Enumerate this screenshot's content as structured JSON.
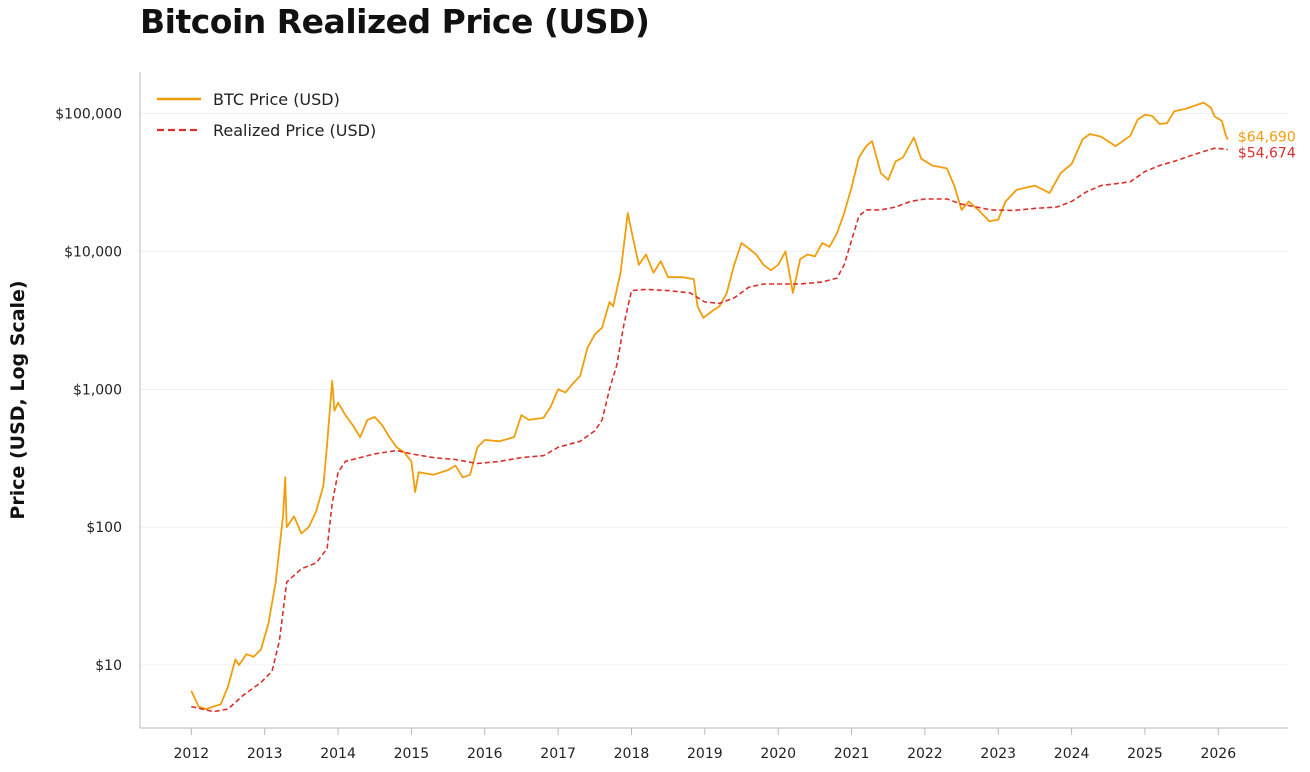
{
  "title": "Bitcoin Realized Price (USD)",
  "chart_data": {
    "type": "line",
    "title": "Bitcoin Realized Price (USD)",
    "xlabel": "",
    "ylabel": "Price (USD, Log Scale)",
    "yscale": "log",
    "ylim": [
      3.5,
      200000
    ],
    "xlim": [
      2011.3,
      2026.95
    ],
    "grid": "horizontal",
    "legend": "top-left",
    "x_ticks": [
      2012,
      2013,
      2014,
      2015,
      2016,
      2017,
      2018,
      2019,
      2020,
      2021,
      2022,
      2023,
      2024,
      2025,
      2026
    ],
    "x_tick_labels": [
      "2012",
      "2013",
      "2014",
      "2015",
      "2016",
      "2017",
      "2018",
      "2019",
      "2020",
      "2021",
      "2022",
      "2023",
      "2024",
      "2025",
      "2026"
    ],
    "y_ticks": [
      10,
      100,
      1000,
      10000,
      100000
    ],
    "y_tick_labels": [
      "$10",
      "$100",
      "$1,000",
      "$10,000",
      "$100,000"
    ],
    "series": [
      {
        "name": "BTC Price (USD)",
        "color": "#f29d0c",
        "style": "solid",
        "end_label": "$64,690",
        "points": [
          [
            2012.0,
            6.5
          ],
          [
            2012.1,
            5.0
          ],
          [
            2012.2,
            4.8
          ],
          [
            2012.3,
            5.0
          ],
          [
            2012.4,
            5.2
          ],
          [
            2012.5,
            7.0
          ],
          [
            2012.6,
            11.0
          ],
          [
            2012.65,
            10.0
          ],
          [
            2012.75,
            12.0
          ],
          [
            2012.85,
            11.5
          ],
          [
            2012.95,
            13.0
          ],
          [
            2013.05,
            20.0
          ],
          [
            2013.15,
            40.0
          ],
          [
            2013.25,
            120.0
          ],
          [
            2013.28,
            230.0
          ],
          [
            2013.3,
            100.0
          ],
          [
            2013.4,
            120.0
          ],
          [
            2013.5,
            90.0
          ],
          [
            2013.6,
            100.0
          ],
          [
            2013.7,
            130.0
          ],
          [
            2013.8,
            200.0
          ],
          [
            2013.85,
            400.0
          ],
          [
            2013.92,
            1150.0
          ],
          [
            2013.95,
            700.0
          ],
          [
            2014.0,
            800.0
          ],
          [
            2014.1,
            650.0
          ],
          [
            2014.2,
            550.0
          ],
          [
            2014.3,
            450.0
          ],
          [
            2014.4,
            600.0
          ],
          [
            2014.5,
            630.0
          ],
          [
            2014.6,
            550.0
          ],
          [
            2014.7,
            450.0
          ],
          [
            2014.8,
            380.0
          ],
          [
            2014.9,
            350.0
          ],
          [
            2015.0,
            300.0
          ],
          [
            2015.05,
            180.0
          ],
          [
            2015.1,
            250.0
          ],
          [
            2015.3,
            240.0
          ],
          [
            2015.5,
            260.0
          ],
          [
            2015.6,
            280.0
          ],
          [
            2015.7,
            230.0
          ],
          [
            2015.8,
            240.0
          ],
          [
            2015.9,
            380.0
          ],
          [
            2016.0,
            430.0
          ],
          [
            2016.2,
            420.0
          ],
          [
            2016.4,
            450.0
          ],
          [
            2016.5,
            650.0
          ],
          [
            2016.6,
            600.0
          ],
          [
            2016.8,
            620.0
          ],
          [
            2016.9,
            750.0
          ],
          [
            2017.0,
            1000.0
          ],
          [
            2017.1,
            950.0
          ],
          [
            2017.2,
            1100.0
          ],
          [
            2017.3,
            1250.0
          ],
          [
            2017.4,
            2000.0
          ],
          [
            2017.5,
            2500.0
          ],
          [
            2017.6,
            2800.0
          ],
          [
            2017.7,
            4300.0
          ],
          [
            2017.75,
            4000.0
          ],
          [
            2017.85,
            7000.0
          ],
          [
            2017.95,
            19000.0
          ],
          [
            2018.0,
            14000.0
          ],
          [
            2018.1,
            8000.0
          ],
          [
            2018.2,
            9500.0
          ],
          [
            2018.3,
            7000.0
          ],
          [
            2018.4,
            8500.0
          ],
          [
            2018.5,
            6500.0
          ],
          [
            2018.7,
            6500.0
          ],
          [
            2018.85,
            6300.0
          ],
          [
            2018.9,
            4000.0
          ],
          [
            2018.98,
            3300.0
          ],
          [
            2019.1,
            3700.0
          ],
          [
            2019.2,
            4000.0
          ],
          [
            2019.3,
            5000.0
          ],
          [
            2019.4,
            8000.0
          ],
          [
            2019.5,
            11500.0
          ],
          [
            2019.6,
            10500.0
          ],
          [
            2019.7,
            9500.0
          ],
          [
            2019.8,
            8000.0
          ],
          [
            2019.9,
            7300.0
          ],
          [
            2020.0,
            8000.0
          ],
          [
            2020.1,
            10000.0
          ],
          [
            2020.2,
            5000.0
          ],
          [
            2020.3,
            8800.0
          ],
          [
            2020.4,
            9500.0
          ],
          [
            2020.5,
            9200.0
          ],
          [
            2020.6,
            11500.0
          ],
          [
            2020.7,
            10800.0
          ],
          [
            2020.8,
            13500.0
          ],
          [
            2020.9,
            19000.0
          ],
          [
            2021.0,
            29000.0
          ],
          [
            2021.1,
            48000.0
          ],
          [
            2021.2,
            58000.0
          ],
          [
            2021.28,
            63000.0
          ],
          [
            2021.4,
            37000.0
          ],
          [
            2021.5,
            33000.0
          ],
          [
            2021.6,
            45000.0
          ],
          [
            2021.7,
            48000.0
          ],
          [
            2021.85,
            67000.0
          ],
          [
            2021.95,
            47000.0
          ],
          [
            2022.1,
            42000.0
          ],
          [
            2022.3,
            40000.0
          ],
          [
            2022.4,
            30000.0
          ],
          [
            2022.5,
            20000.0
          ],
          [
            2022.6,
            23000.0
          ],
          [
            2022.75,
            19500.0
          ],
          [
            2022.88,
            16500.0
          ],
          [
            2023.0,
            17000.0
          ],
          [
            2023.1,
            23000.0
          ],
          [
            2023.25,
            28000.0
          ],
          [
            2023.5,
            30000.0
          ],
          [
            2023.7,
            26500.0
          ],
          [
            2023.85,
            37000.0
          ],
          [
            2024.0,
            43000.0
          ],
          [
            2024.15,
            65000.0
          ],
          [
            2024.25,
            71000.0
          ],
          [
            2024.4,
            68000.0
          ],
          [
            2024.6,
            58000.0
          ],
          [
            2024.8,
            69000.0
          ],
          [
            2024.9,
            90000.0
          ],
          [
            2025.0,
            98000.0
          ],
          [
            2025.1,
            96000.0
          ],
          [
            2025.2,
            84000.0
          ],
          [
            2025.3,
            85000.0
          ],
          [
            2025.4,
            104000.0
          ],
          [
            2025.55,
            108000.0
          ],
          [
            2025.7,
            115000.0
          ],
          [
            2025.8,
            120000.0
          ],
          [
            2025.9,
            110000.0
          ],
          [
            2025.95,
            95000.0
          ],
          [
            2026.0,
            92000.0
          ],
          [
            2026.05,
            88000.0
          ],
          [
            2026.1,
            70000.0
          ],
          [
            2026.13,
            64690.0
          ]
        ]
      },
      {
        "name": "Realized Price (USD)",
        "color": "#d9302c",
        "style": "dashed",
        "end_label": "$54,674",
        "points": [
          [
            2012.0,
            5.0
          ],
          [
            2012.3,
            4.6
          ],
          [
            2012.5,
            4.8
          ],
          [
            2012.7,
            6.0
          ],
          [
            2012.95,
            7.5
          ],
          [
            2013.1,
            9.0
          ],
          [
            2013.2,
            15.0
          ],
          [
            2013.3,
            40.0
          ],
          [
            2013.5,
            50.0
          ],
          [
            2013.7,
            55.0
          ],
          [
            2013.85,
            70.0
          ],
          [
            2013.92,
            150.0
          ],
          [
            2014.0,
            250.0
          ],
          [
            2014.1,
            300.0
          ],
          [
            2014.3,
            320.0
          ],
          [
            2014.5,
            340.0
          ],
          [
            2014.8,
            360.0
          ],
          [
            2015.0,
            340.0
          ],
          [
            2015.3,
            320.0
          ],
          [
            2015.6,
            310.0
          ],
          [
            2015.9,
            290.0
          ],
          [
            2016.2,
            300.0
          ],
          [
            2016.5,
            320.0
          ],
          [
            2016.8,
            330.0
          ],
          [
            2017.0,
            380.0
          ],
          [
            2017.3,
            420.0
          ],
          [
            2017.5,
            500.0
          ],
          [
            2017.6,
            600.0
          ],
          [
            2017.7,
            1000.0
          ],
          [
            2017.8,
            1500.0
          ],
          [
            2017.9,
            3000.0
          ],
          [
            2018.0,
            5200.0
          ],
          [
            2018.2,
            5300.0
          ],
          [
            2018.5,
            5200.0
          ],
          [
            2018.8,
            5000.0
          ],
          [
            2019.0,
            4300.0
          ],
          [
            2019.2,
            4200.0
          ],
          [
            2019.4,
            4600.0
          ],
          [
            2019.6,
            5500.0
          ],
          [
            2019.8,
            5800.0
          ],
          [
            2020.0,
            5800.0
          ],
          [
            2020.3,
            5800.0
          ],
          [
            2020.6,
            6000.0
          ],
          [
            2020.8,
            6400.0
          ],
          [
            2020.9,
            8000.0
          ],
          [
            2021.0,
            12000.0
          ],
          [
            2021.1,
            18000.0
          ],
          [
            2021.2,
            20000.0
          ],
          [
            2021.4,
            20000.0
          ],
          [
            2021.6,
            21000.0
          ],
          [
            2021.8,
            23000.0
          ],
          [
            2022.0,
            24000.0
          ],
          [
            2022.3,
            24000.0
          ],
          [
            2022.5,
            22000.0
          ],
          [
            2022.7,
            21000.0
          ],
          [
            2022.9,
            20000.0
          ],
          [
            2023.2,
            19800.0
          ],
          [
            2023.5,
            20500.0
          ],
          [
            2023.8,
            21000.0
          ],
          [
            2024.0,
            23000.0
          ],
          [
            2024.2,
            27000.0
          ],
          [
            2024.4,
            30000.0
          ],
          [
            2024.6,
            31000.0
          ],
          [
            2024.8,
            32000.0
          ],
          [
            2025.0,
            38000.0
          ],
          [
            2025.2,
            42000.0
          ],
          [
            2025.4,
            45000.0
          ],
          [
            2025.6,
            49000.0
          ],
          [
            2025.8,
            53000.0
          ],
          [
            2025.95,
            56000.0
          ],
          [
            2026.05,
            55500.0
          ],
          [
            2026.13,
            54674.0
          ]
        ]
      }
    ]
  }
}
